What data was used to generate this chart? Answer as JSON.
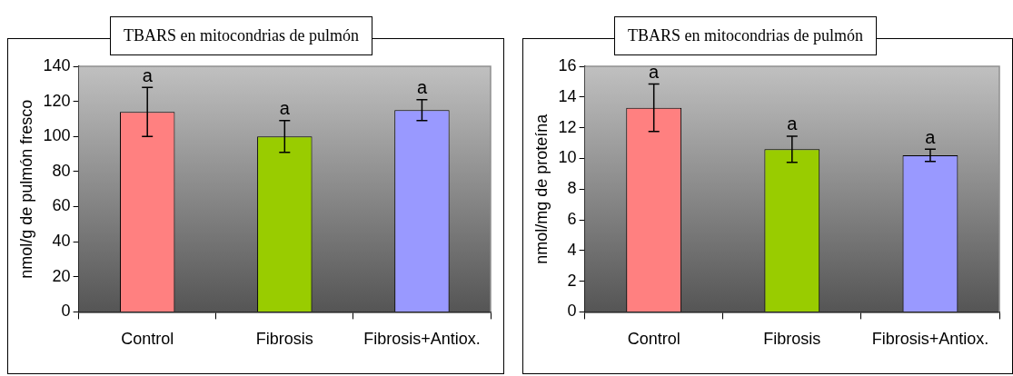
{
  "chart_data": [
    {
      "type": "bar",
      "title": "TBARS en mitocondrias de pulmón",
      "ylabel": "nmol/g de pulmón fresco",
      "categories": [
        "Control",
        "Fibrosis",
        "Fibrosis+Antiox."
      ],
      "values": [
        114,
        100,
        115
      ],
      "colors": [
        "#ff8080",
        "#99cc00",
        "#9999ff"
      ],
      "errors": [
        14,
        9,
        6
      ],
      "ylim": [
        0,
        140
      ],
      "yticks": [
        0,
        20,
        40,
        60,
        80,
        100,
        120,
        140
      ],
      "grid": false,
      "annotations": [
        {
          "text": "a",
          "x": "Control",
          "y": 128
        },
        {
          "text": "a",
          "x": "Fibrosis",
          "y": 109
        },
        {
          "text": "a",
          "x": "Fibrosis+Antiox.",
          "y": 121
        }
      ]
    },
    {
      "type": "bar",
      "title": "TBARS en mitocondrias de pulmón",
      "ylabel": "nmol/mg de proteína",
      "categories": [
        "Control",
        "Fibrosis",
        "Fibrosis+Antiox."
      ],
      "values": [
        13.3,
        10.6,
        10.2
      ],
      "colors": [
        "#ff8080",
        "#99cc00",
        "#9999ff"
      ],
      "errors": [
        1.55,
        0.85,
        0.4
      ],
      "ylim": [
        0,
        16
      ],
      "yticks": [
        0,
        2,
        4,
        6,
        8,
        10,
        12,
        14,
        16
      ],
      "grid": false,
      "annotations": [
        {
          "text": "a",
          "x": "Control",
          "y": 14.85
        },
        {
          "text": "a",
          "x": "Fibrosis",
          "y": 11.45
        },
        {
          "text": "a",
          "x": "Fibrosis+Antiox.",
          "y": 10.6
        }
      ]
    }
  ]
}
